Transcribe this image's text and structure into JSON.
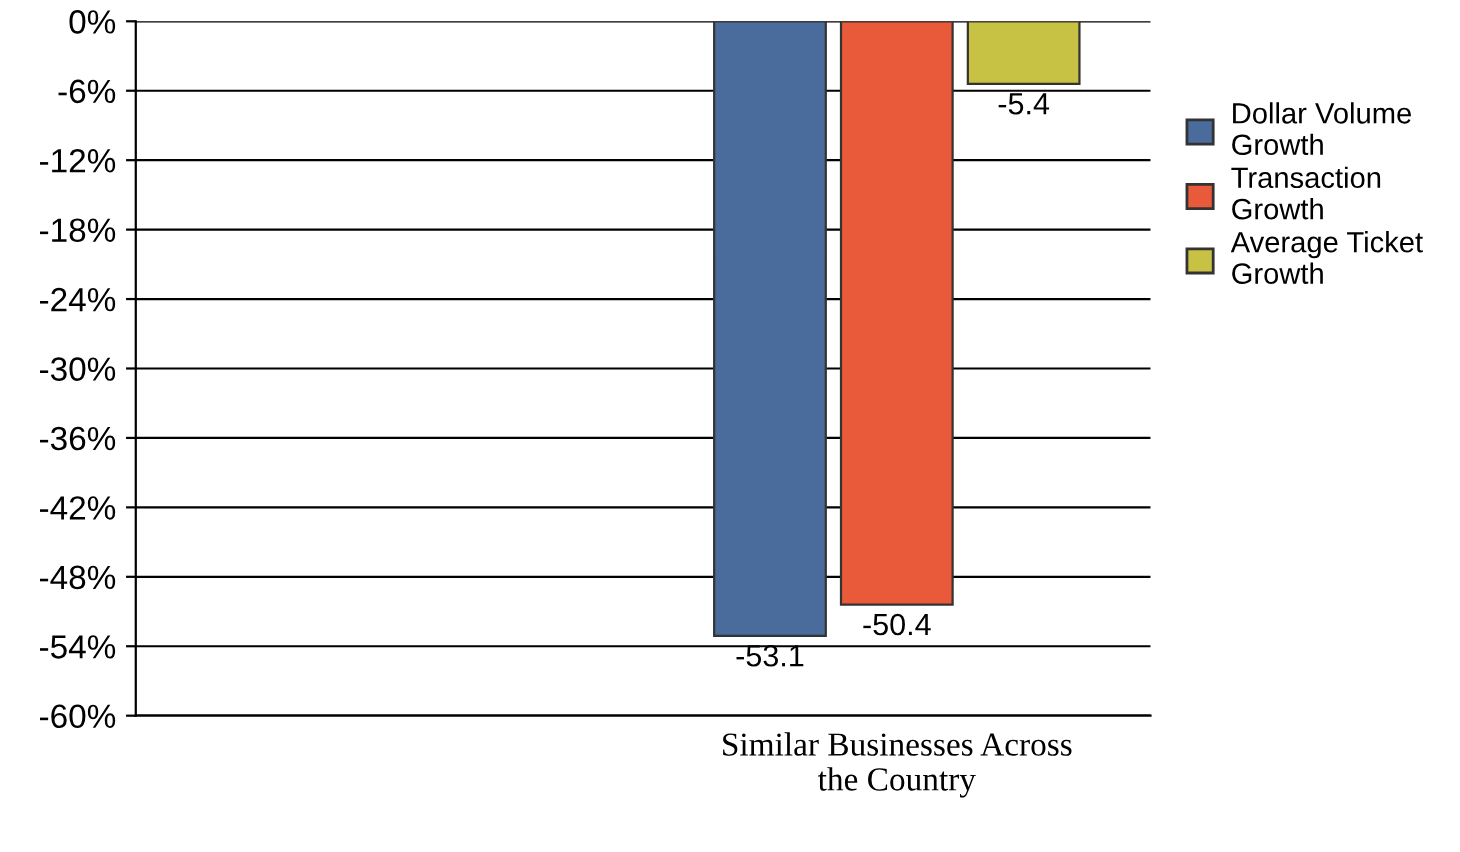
{
  "chart_data": {
    "type": "bar",
    "categories": [
      null,
      "Similar Businesses Across the Country"
    ],
    "series": [
      {
        "name": "Dollar Volume Growth",
        "color": "#4a6c9c",
        "values": [
          null,
          -53.1
        ]
      },
      {
        "name": "Transaction Growth",
        "color": "#e85a3a",
        "values": [
          null,
          -50.4
        ]
      },
      {
        "name": "Average Ticket Growth",
        "color": "#c8c244",
        "values": [
          null,
          -5.4
        ]
      }
    ],
    "ylim": [
      -60,
      0
    ],
    "yticks": [
      {
        "value": 0,
        "label": "0%"
      },
      {
        "value": -6,
        "label": "-6%"
      },
      {
        "value": -12,
        "label": "-12%"
      },
      {
        "value": -18,
        "label": "-18%"
      },
      {
        "value": -24,
        "label": "-24%"
      },
      {
        "value": -30,
        "label": "-30%"
      },
      {
        "value": -36,
        "label": "-36%"
      },
      {
        "value": -42,
        "label": "-42%"
      },
      {
        "value": -48,
        "label": "-48%"
      },
      {
        "value": -54,
        "label": "-54%"
      },
      {
        "value": -60,
        "label": "-60%"
      }
    ],
    "grid": "y",
    "legend": "right",
    "data_labels": true
  }
}
